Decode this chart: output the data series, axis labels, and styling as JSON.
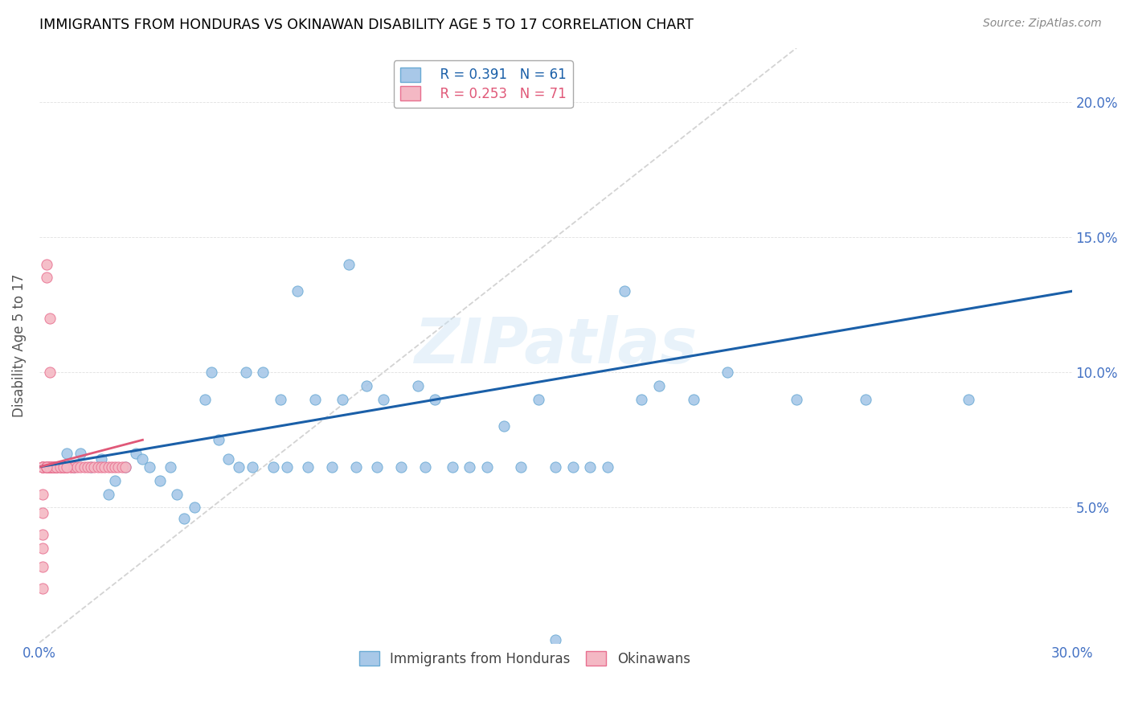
{
  "title": "IMMIGRANTS FROM HONDURAS VS OKINAWAN DISABILITY AGE 5 TO 17 CORRELATION CHART",
  "source": "Source: ZipAtlas.com",
  "ylabel": "Disability Age 5 to 17",
  "xlim": [
    0.0,
    0.3
  ],
  "ylim": [
    0.0,
    0.22
  ],
  "x_ticks": [
    0.0,
    0.05,
    0.1,
    0.15,
    0.2,
    0.25,
    0.3
  ],
  "x_tick_labels_show": [
    "0.0%",
    "",
    "",
    "",
    "",
    "",
    "30.0%"
  ],
  "y_ticks": [
    0.0,
    0.05,
    0.1,
    0.15,
    0.2
  ],
  "y_tick_labels_right": [
    "",
    "5.0%",
    "10.0%",
    "15.0%",
    "20.0%"
  ],
  "legend_r1": "R = 0.391",
  "legend_n1": "N = 61",
  "legend_r2": "R = 0.253",
  "legend_n2": "N = 71",
  "color_blue": "#a8c8e8",
  "color_blue_edge": "#6aaad4",
  "color_blue_line": "#1a5fa8",
  "color_pink": "#f4b8c4",
  "color_pink_edge": "#e87090",
  "color_pink_line": "#e05878",
  "color_diag": "#c8c8c8",
  "watermark": "ZIPatlas",
  "blue_x": [
    0.005,
    0.008,
    0.01,
    0.012,
    0.015,
    0.018,
    0.02,
    0.022,
    0.025,
    0.028,
    0.03,
    0.032,
    0.035,
    0.038,
    0.04,
    0.042,
    0.045,
    0.048,
    0.05,
    0.052,
    0.055,
    0.058,
    0.06,
    0.062,
    0.065,
    0.068,
    0.07,
    0.072,
    0.075,
    0.078,
    0.08,
    0.085,
    0.088,
    0.09,
    0.092,
    0.095,
    0.098,
    0.1,
    0.105,
    0.11,
    0.112,
    0.115,
    0.12,
    0.125,
    0.13,
    0.135,
    0.14,
    0.145,
    0.15,
    0.155,
    0.16,
    0.165,
    0.17,
    0.175,
    0.18,
    0.19,
    0.2,
    0.22,
    0.24,
    0.27,
    0.15
  ],
  "blue_y": [
    0.065,
    0.07,
    0.065,
    0.07,
    0.065,
    0.068,
    0.055,
    0.06,
    0.065,
    0.07,
    0.068,
    0.065,
    0.06,
    0.065,
    0.055,
    0.046,
    0.05,
    0.09,
    0.1,
    0.075,
    0.068,
    0.065,
    0.1,
    0.065,
    0.1,
    0.065,
    0.09,
    0.065,
    0.13,
    0.065,
    0.09,
    0.065,
    0.09,
    0.14,
    0.065,
    0.095,
    0.065,
    0.09,
    0.065,
    0.095,
    0.065,
    0.09,
    0.065,
    0.065,
    0.065,
    0.08,
    0.065,
    0.09,
    0.065,
    0.065,
    0.065,
    0.065,
    0.13,
    0.09,
    0.095,
    0.09,
    0.1,
    0.09,
    0.09,
    0.09,
    0.001
  ],
  "pink_x": [
    0.001,
    0.001,
    0.001,
    0.001,
    0.001,
    0.001,
    0.001,
    0.001,
    0.001,
    0.001,
    0.001,
    0.002,
    0.002,
    0.002,
    0.002,
    0.002,
    0.002,
    0.002,
    0.003,
    0.003,
    0.003,
    0.003,
    0.003,
    0.003,
    0.003,
    0.004,
    0.004,
    0.004,
    0.004,
    0.005,
    0.005,
    0.005,
    0.005,
    0.005,
    0.006,
    0.006,
    0.006,
    0.007,
    0.007,
    0.007,
    0.008,
    0.008,
    0.008,
    0.009,
    0.009,
    0.01,
    0.01,
    0.011,
    0.012,
    0.013,
    0.014,
    0.015,
    0.016,
    0.017,
    0.018,
    0.019,
    0.02,
    0.021,
    0.022,
    0.023,
    0.024,
    0.025,
    0.003,
    0.003,
    0.003,
    0.004,
    0.005,
    0.006,
    0.007,
    0.008,
    0.002
  ],
  "pink_y": [
    0.065,
    0.065,
    0.065,
    0.065,
    0.065,
    0.055,
    0.048,
    0.04,
    0.035,
    0.028,
    0.02,
    0.14,
    0.135,
    0.065,
    0.065,
    0.065,
    0.065,
    0.065,
    0.065,
    0.065,
    0.065,
    0.065,
    0.065,
    0.065,
    0.065,
    0.065,
    0.065,
    0.065,
    0.065,
    0.065,
    0.065,
    0.065,
    0.065,
    0.065,
    0.065,
    0.065,
    0.065,
    0.065,
    0.065,
    0.065,
    0.065,
    0.065,
    0.065,
    0.065,
    0.065,
    0.065,
    0.065,
    0.065,
    0.065,
    0.065,
    0.065,
    0.065,
    0.065,
    0.065,
    0.065,
    0.065,
    0.065,
    0.065,
    0.065,
    0.065,
    0.065,
    0.065,
    0.12,
    0.1,
    0.065,
    0.065,
    0.065,
    0.065,
    0.065,
    0.065,
    0.065
  ]
}
